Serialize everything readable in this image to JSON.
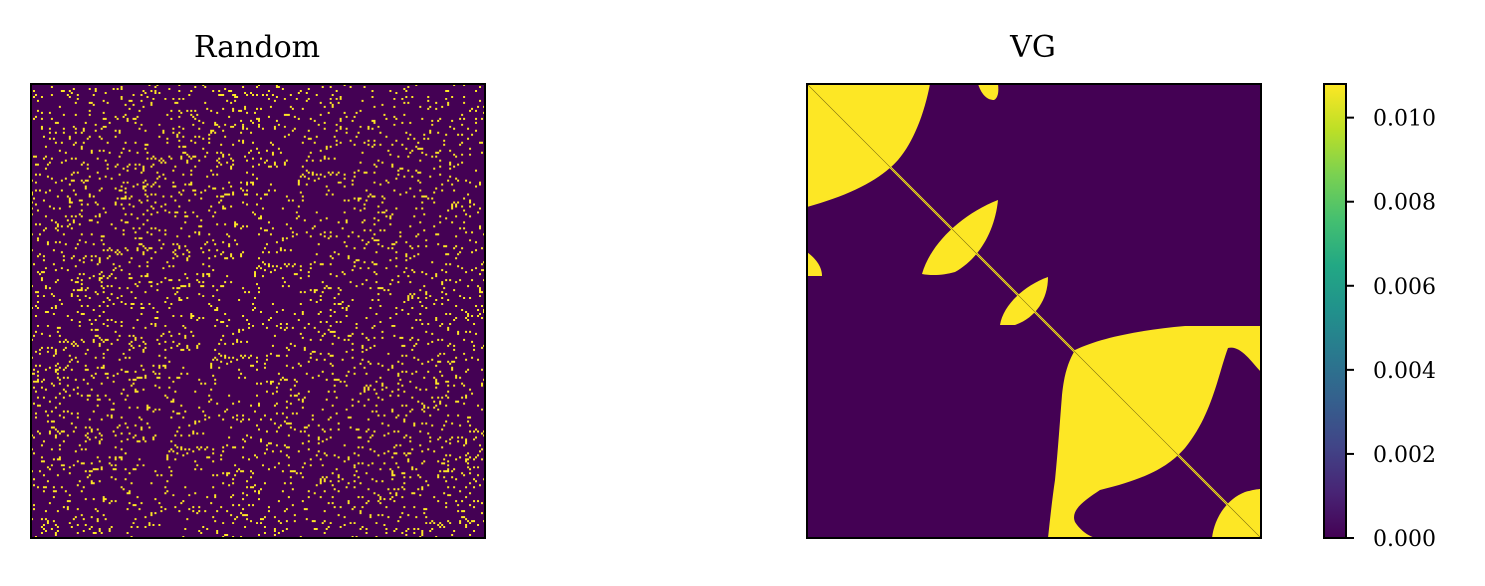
{
  "chart_data": [
    {
      "type": "heatmap",
      "title": "Random",
      "xlabel": "",
      "ylabel": "",
      "xticks": [],
      "yticks": [],
      "matrix_size": 228,
      "pattern": "random sparse binary matrix, approx. 6% of cells at max value",
      "fill_fraction": 0.06,
      "cell_values": [
        0.0,
        0.0108
      ],
      "colormap": "viridis"
    },
    {
      "type": "heatmap",
      "title": "VG",
      "xlabel": "",
      "ylabel": "",
      "xticks": [],
      "yticks": [],
      "matrix_size": 228,
      "pattern": "symmetric binary matrix with blocks along the main diagonal",
      "cell_values": [
        0.0,
        0.0108
      ],
      "colormap": "viridis"
    }
  ],
  "colorbar": {
    "range": [
      0.0,
      0.0108
    ],
    "ticks": [
      "0.000",
      "0.002",
      "0.004",
      "0.006",
      "0.008",
      "0.010"
    ],
    "tick_values": [
      0.0,
      0.002,
      0.004,
      0.006,
      0.008,
      0.01
    ],
    "colormap": "viridis"
  },
  "colors": {
    "low": "#440154",
    "high": "#fde725"
  }
}
